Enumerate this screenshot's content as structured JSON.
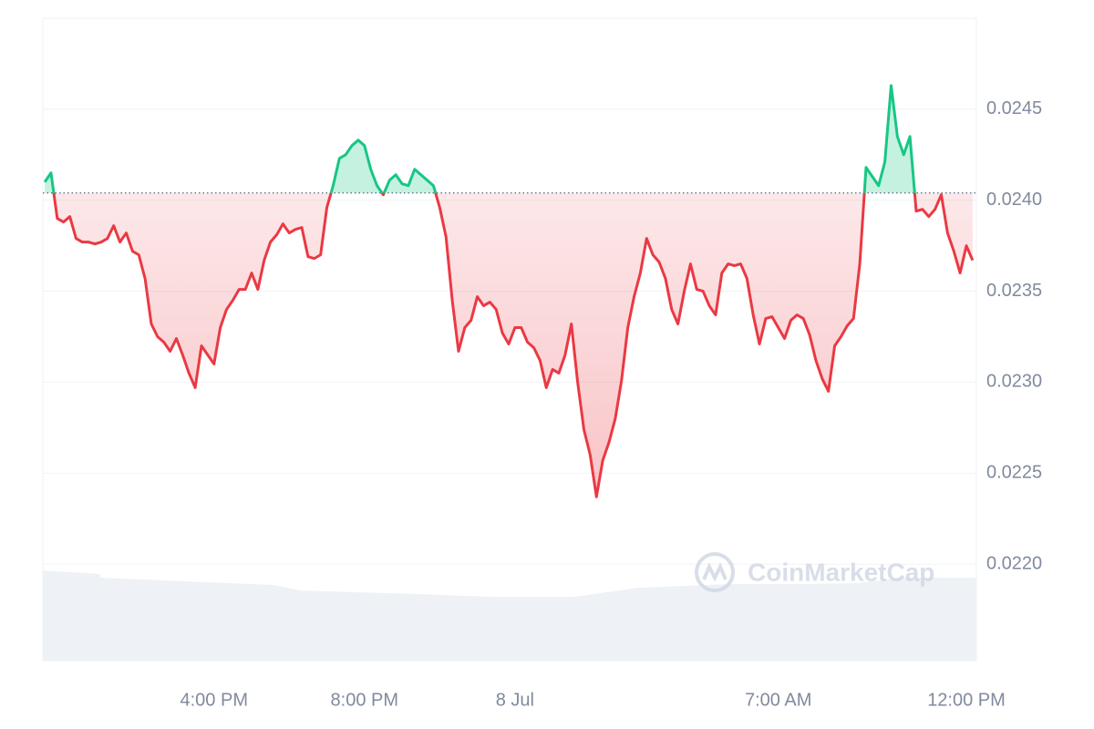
{
  "chart_data": {
    "type": "line",
    "watermark": "CoinMarketCap",
    "up_color": "#16c784",
    "down_color": "#ea3943",
    "baseline": 0.02404,
    "grid": true,
    "xlim": [
      "7 Jul 11:27",
      "8 Jul 12:16"
    ],
    "xticks": [
      {
        "value": "7 Jul 16:00",
        "label": "4:00 PM"
      },
      {
        "value": "7 Jul 20:00",
        "label": "8:00 PM"
      },
      {
        "value": "8 Jul 00:00",
        "label": "8 Jul"
      },
      {
        "value": "8 Jul 07:00",
        "label": "7:00 AM"
      },
      {
        "value": "8 Jul 12:00",
        "label": "12:00 PM"
      }
    ],
    "ylim": [
      0.02147,
      0.025
    ],
    "yticks": [
      {
        "value": 0.022,
        "label": "0.0220"
      },
      0.0225,
      {
        "value": 0.023,
        "label": "0.0230"
      },
      0.0235,
      {
        "value": 0.024,
        "label": "0.0240"
      },
      0.0245
    ],
    "x": [
      "7 Jul 11:30",
      "7 Jul 11:40",
      "7 Jul 11:50",
      "7 Jul 12:00",
      "7 Jul 12:10",
      "7 Jul 12:20",
      "7 Jul 12:30",
      "7 Jul 12:40",
      "7 Jul 12:50",
      "7 Jul 13:00",
      "7 Jul 13:10",
      "7 Jul 13:20",
      "7 Jul 13:30",
      "7 Jul 13:40",
      "7 Jul 13:50",
      "7 Jul 14:00",
      "7 Jul 14:10",
      "7 Jul 14:20",
      "7 Jul 14:30",
      "7 Jul 14:40",
      "7 Jul 14:50",
      "7 Jul 15:00",
      "7 Jul 15:10",
      "7 Jul 15:20",
      "7 Jul 15:30",
      "7 Jul 15:40",
      "7 Jul 15:50",
      "7 Jul 16:00",
      "7 Jul 16:10",
      "7 Jul 16:20",
      "7 Jul 16:30",
      "7 Jul 16:40",
      "7 Jul 16:50",
      "7 Jul 17:00",
      "7 Jul 17:10",
      "7 Jul 17:20",
      "7 Jul 17:30",
      "7 Jul 17:40",
      "7 Jul 17:50",
      "7 Jul 18:00",
      "7 Jul 18:10",
      "7 Jul 18:20",
      "7 Jul 18:30",
      "7 Jul 18:40",
      "7 Jul 18:50",
      "7 Jul 19:00",
      "7 Jul 19:10",
      "7 Jul 19:20",
      "7 Jul 19:30",
      "7 Jul 19:40",
      "7 Jul 19:50",
      "7 Jul 20:00",
      "7 Jul 20:10",
      "7 Jul 20:20",
      "7 Jul 20:30",
      "7 Jul 20:40",
      "7 Jul 20:50",
      "7 Jul 21:00",
      "7 Jul 21:10",
      "7 Jul 21:20",
      "7 Jul 21:30",
      "7 Jul 21:40",
      "7 Jul 21:50",
      "7 Jul 22:00",
      "7 Jul 22:10",
      "7 Jul 22:20",
      "7 Jul 22:30",
      "7 Jul 22:40",
      "7 Jul 22:50",
      "7 Jul 23:00",
      "7 Jul 23:10",
      "7 Jul 23:20",
      "7 Jul 23:30",
      "7 Jul 23:40",
      "7 Jul 23:50",
      "8 Jul 00:00",
      "8 Jul 00:10",
      "8 Jul 00:20",
      "8 Jul 00:30",
      "8 Jul 00:40",
      "8 Jul 00:50",
      "8 Jul 01:00",
      "8 Jul 01:10",
      "8 Jul 01:20",
      "8 Jul 01:30",
      "8 Jul 01:40",
      "8 Jul 01:50",
      "8 Jul 02:00",
      "8 Jul 02:10",
      "8 Jul 02:20",
      "8 Jul 02:30",
      "8 Jul 02:40",
      "8 Jul 02:50",
      "8 Jul 03:00",
      "8 Jul 03:10",
      "8 Jul 03:20",
      "8 Jul 03:30",
      "8 Jul 03:40",
      "8 Jul 03:50",
      "8 Jul 04:00",
      "8 Jul 04:10",
      "8 Jul 04:20",
      "8 Jul 04:30",
      "8 Jul 04:40",
      "8 Jul 04:50",
      "8 Jul 05:00",
      "8 Jul 05:10",
      "8 Jul 05:20",
      "8 Jul 05:30",
      "8 Jul 05:40",
      "8 Jul 05:50",
      "8 Jul 06:00",
      "8 Jul 06:10",
      "8 Jul 06:20",
      "8 Jul 06:30",
      "8 Jul 06:40",
      "8 Jul 06:50",
      "8 Jul 07:00",
      "8 Jul 07:10",
      "8 Jul 07:20",
      "8 Jul 07:30",
      "8 Jul 07:40",
      "8 Jul 07:50",
      "8 Jul 08:00",
      "8 Jul 08:10",
      "8 Jul 08:20",
      "8 Jul 08:30",
      "8 Jul 08:40",
      "8 Jul 08:50",
      "8 Jul 09:00",
      "8 Jul 09:10",
      "8 Jul 09:20",
      "8 Jul 09:30",
      "8 Jul 09:40",
      "8 Jul 09:50",
      "8 Jul 10:00",
      "8 Jul 10:10",
      "8 Jul 10:20",
      "8 Jul 10:30",
      "8 Jul 10:40",
      "8 Jul 10:50",
      "8 Jul 11:00",
      "8 Jul 11:10",
      "8 Jul 11:20",
      "8 Jul 11:30",
      "8 Jul 11:40",
      "8 Jul 11:50",
      "8 Jul 12:00",
      "8 Jul 12:10"
    ],
    "values": [
      0.0241,
      0.02415,
      0.0239,
      0.02388,
      0.02391,
      0.02379,
      0.02377,
      0.02377,
      0.02376,
      0.02377,
      0.02379,
      0.02386,
      0.02377,
      0.02382,
      0.02372,
      0.0237,
      0.02357,
      0.02332,
      0.02325,
      0.02322,
      0.02317,
      0.02324,
      0.02315,
      0.02305,
      0.02297,
      0.0232,
      0.02315,
      0.0231,
      0.0233,
      0.0234,
      0.02345,
      0.02351,
      0.02351,
      0.0236,
      0.02351,
      0.02367,
      0.02377,
      0.02381,
      0.02387,
      0.02382,
      0.02384,
      0.02385,
      0.02369,
      0.02368,
      0.0237,
      0.02396,
      0.02408,
      0.02423,
      0.02425,
      0.0243,
      0.02433,
      0.0243,
      0.02417,
      0.02408,
      0.02403,
      0.02411,
      0.02414,
      0.02409,
      0.02408,
      0.02417,
      0.02414,
      0.02411,
      0.02408,
      0.02396,
      0.0238,
      0.02345,
      0.02317,
      0.0233,
      0.02334,
      0.02347,
      0.02342,
      0.02344,
      0.0234,
      0.02327,
      0.02321,
      0.0233,
      0.0233,
      0.02322,
      0.02319,
      0.02312,
      0.02297,
      0.02307,
      0.02305,
      0.02315,
      0.02332,
      0.023,
      0.02274,
      0.0226,
      0.02237,
      0.02257,
      0.02267,
      0.0228,
      0.02301,
      0.0233,
      0.02347,
      0.0236,
      0.02379,
      0.0237,
      0.02366,
      0.02357,
      0.0234,
      0.02332,
      0.0235,
      0.02365,
      0.02351,
      0.0235,
      0.02342,
      0.02337,
      0.0236,
      0.02365,
      0.02364,
      0.02365,
      0.02357,
      0.02337,
      0.02321,
      0.02335,
      0.02336,
      0.0233,
      0.02324,
      0.02334,
      0.02337,
      0.02335,
      0.02326,
      0.02312,
      0.02302,
      0.02295,
      0.0232,
      0.02325,
      0.02331,
      0.02335,
      0.02365,
      0.02418,
      0.02413,
      0.02408,
      0.02421,
      0.02463,
      0.02435,
      0.02425,
      0.02435,
      0.02394,
      0.02395,
      0.02391,
      0.02395,
      0.02403,
      0.02382,
      0.02372,
      0.0236,
      0.02375,
      0.02367
    ]
  }
}
